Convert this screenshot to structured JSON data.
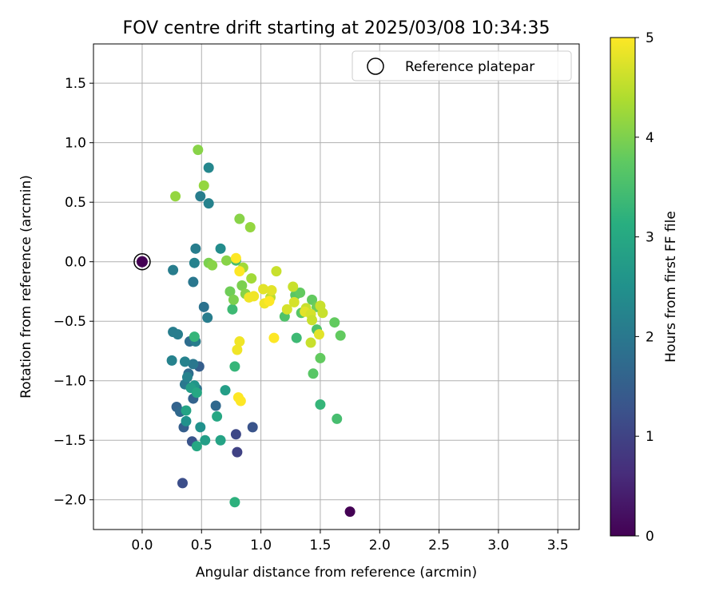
{
  "chart_data": {
    "type": "scatter",
    "title": "FOV centre drift starting at 2025/03/08 10:34:35",
    "xlabel": "Angular distance from reference (arcmin)",
    "ylabel": "Rotation from reference (arcmin)",
    "xlim": [
      -0.41,
      3.68
    ],
    "ylim": [
      -2.25,
      1.83
    ],
    "xticks": [
      "0.0",
      "0.5",
      "1.0",
      "1.5",
      "2.0",
      "2.5",
      "3.0",
      "3.5"
    ],
    "xtick_values": [
      0,
      0.5,
      1.0,
      1.5,
      2.0,
      2.5,
      3.0,
      3.5
    ],
    "yticks": [
      "1.5",
      "1.0",
      "0.5",
      "0.0",
      "−0.5",
      "−1.0",
      "−1.5",
      "−2.0"
    ],
    "ytick_values": [
      1.5,
      1.0,
      0.5,
      0.0,
      -0.5,
      -1.0,
      -1.5,
      -2.0
    ],
    "grid": true,
    "legend": {
      "position": "upper-right",
      "entries": [
        {
          "label": "Reference platepar",
          "marker": "open-circle"
        }
      ]
    },
    "reference": {
      "x": 0.0,
      "y": 0.0,
      "c": 0.0
    },
    "colorbar": {
      "label": "Hours from first FF file",
      "range": [
        0,
        5
      ],
      "ticks": [
        "0",
        "1",
        "2",
        "3",
        "4",
        "5"
      ],
      "tick_values": [
        0,
        1,
        2,
        3,
        4,
        5
      ],
      "colormap": "viridis"
    },
    "points": [
      {
        "x": 1.75,
        "y": -2.1,
        "c": 0.0
      },
      {
        "x": 0.34,
        "y": -1.86,
        "c": 1.2
      },
      {
        "x": 0.8,
        "y": -1.6,
        "c": 1.0
      },
      {
        "x": 0.42,
        "y": -1.51,
        "c": 1.3
      },
      {
        "x": 0.79,
        "y": -1.45,
        "c": 1.1
      },
      {
        "x": 0.93,
        "y": -1.39,
        "c": 1.3
      },
      {
        "x": 0.35,
        "y": -1.39,
        "c": 1.5
      },
      {
        "x": 0.29,
        "y": -1.22,
        "c": 1.6
      },
      {
        "x": 0.32,
        "y": -1.26,
        "c": 1.7
      },
      {
        "x": 0.48,
        "y": -0.88,
        "c": 1.5
      },
      {
        "x": 0.43,
        "y": -1.15,
        "c": 1.6
      },
      {
        "x": 0.62,
        "y": -1.21,
        "c": 1.7
      },
      {
        "x": 0.39,
        "y": -0.94,
        "c": 1.8
      },
      {
        "x": 0.4,
        "y": -0.67,
        "c": 1.8
      },
      {
        "x": 0.46,
        "y": -1.07,
        "c": 1.9
      },
      {
        "x": 0.36,
        "y": -1.03,
        "c": 2.0
      },
      {
        "x": 0.43,
        "y": -0.86,
        "c": 2.0
      },
      {
        "x": 0.26,
        "y": -0.59,
        "c": 2.1
      },
      {
        "x": 0.3,
        "y": -0.61,
        "c": 2.1
      },
      {
        "x": 0.45,
        "y": -0.67,
        "c": 2.1
      },
      {
        "x": 0.25,
        "y": -0.83,
        "c": 2.2
      },
      {
        "x": 0.36,
        "y": -0.84,
        "c": 2.2
      },
      {
        "x": 0.38,
        "y": -0.97,
        "c": 2.2
      },
      {
        "x": 0.43,
        "y": -0.17,
        "c": 2.0
      },
      {
        "x": 0.26,
        "y": -0.07,
        "c": 2.1
      },
      {
        "x": 0.44,
        "y": -0.01,
        "c": 2.2
      },
      {
        "x": 0.45,
        "y": 0.11,
        "c": 2.1
      },
      {
        "x": 0.52,
        "y": -0.38,
        "c": 1.9
      },
      {
        "x": 0.55,
        "y": -0.47,
        "c": 2.1
      },
      {
        "x": 0.49,
        "y": 0.55,
        "c": 2.1
      },
      {
        "x": 0.56,
        "y": 0.49,
        "c": 2.2
      },
      {
        "x": 0.56,
        "y": 0.79,
        "c": 2.3
      },
      {
        "x": 0.66,
        "y": 0.11,
        "c": 2.4
      },
      {
        "x": 0.37,
        "y": -1.34,
        "c": 2.5
      },
      {
        "x": 0.49,
        "y": -1.39,
        "c": 2.5
      },
      {
        "x": 0.53,
        "y": -1.5,
        "c": 2.8
      },
      {
        "x": 0.46,
        "y": -1.55,
        "c": 3.0
      },
      {
        "x": 0.66,
        "y": -1.5,
        "c": 2.9
      },
      {
        "x": 0.44,
        "y": -1.04,
        "c": 2.6
      },
      {
        "x": 0.41,
        "y": -1.06,
        "c": 2.8
      },
      {
        "x": 0.46,
        "y": -1.1,
        "c": 3.0
      },
      {
        "x": 0.37,
        "y": -1.25,
        "c": 2.9
      },
      {
        "x": 0.63,
        "y": -1.3,
        "c": 3.0
      },
      {
        "x": 0.7,
        "y": -1.08,
        "c": 2.8
      },
      {
        "x": 0.78,
        "y": -2.02,
        "c": 3.2
      },
      {
        "x": 0.44,
        "y": -0.63,
        "c": 3.3
      },
      {
        "x": 0.78,
        "y": -0.88,
        "c": 3.3
      },
      {
        "x": 0.76,
        "y": -0.4,
        "c": 3.4
      },
      {
        "x": 0.79,
        "y": 0.01,
        "c": 3.5
      },
      {
        "x": 1.3,
        "y": -0.64,
        "c": 3.4
      },
      {
        "x": 1.5,
        "y": -1.2,
        "c": 3.3
      },
      {
        "x": 1.64,
        "y": -1.32,
        "c": 3.5
      },
      {
        "x": 1.2,
        "y": -0.46,
        "c": 3.6
      },
      {
        "x": 1.47,
        "y": -0.57,
        "c": 3.6
      },
      {
        "x": 1.44,
        "y": -0.94,
        "c": 3.7
      },
      {
        "x": 1.5,
        "y": -0.81,
        "c": 3.8
      },
      {
        "x": 1.62,
        "y": -0.51,
        "c": 3.8
      },
      {
        "x": 1.67,
        "y": -0.62,
        "c": 3.8
      },
      {
        "x": 1.29,
        "y": -0.28,
        "c": 3.7
      },
      {
        "x": 1.33,
        "y": -0.26,
        "c": 3.8
      },
      {
        "x": 1.34,
        "y": -0.43,
        "c": 3.7
      },
      {
        "x": 1.43,
        "y": -0.32,
        "c": 3.8
      },
      {
        "x": 1.47,
        "y": -0.38,
        "c": 3.9
      },
      {
        "x": 0.74,
        "y": -0.25,
        "c": 3.9
      },
      {
        "x": 0.77,
        "y": -0.32,
        "c": 4.0
      },
      {
        "x": 0.84,
        "y": -0.2,
        "c": 4.0
      },
      {
        "x": 0.87,
        "y": -0.27,
        "c": 4.1
      },
      {
        "x": 0.71,
        "y": 0.01,
        "c": 4.1
      },
      {
        "x": 0.56,
        "y": -0.01,
        "c": 4.0
      },
      {
        "x": 0.59,
        "y": -0.03,
        "c": 4.1
      },
      {
        "x": 0.82,
        "y": 0.36,
        "c": 4.1
      },
      {
        "x": 0.91,
        "y": 0.29,
        "c": 4.2
      },
      {
        "x": 0.47,
        "y": 0.94,
        "c": 4.1
      },
      {
        "x": 0.52,
        "y": 0.64,
        "c": 4.2
      },
      {
        "x": 0.28,
        "y": 0.55,
        "c": 4.2
      },
      {
        "x": 0.85,
        "y": -0.05,
        "c": 4.3
      },
      {
        "x": 0.92,
        "y": -0.14,
        "c": 4.3
      },
      {
        "x": 1.08,
        "y": -0.3,
        "c": 4.5
      },
      {
        "x": 1.13,
        "y": -0.08,
        "c": 4.6
      },
      {
        "x": 1.27,
        "y": -0.21,
        "c": 4.6
      },
      {
        "x": 1.28,
        "y": -0.34,
        "c": 4.7
      },
      {
        "x": 1.22,
        "y": -0.4,
        "c": 4.7
      },
      {
        "x": 1.38,
        "y": -0.39,
        "c": 4.6
      },
      {
        "x": 1.37,
        "y": -0.42,
        "c": 4.8
      },
      {
        "x": 1.42,
        "y": -0.44,
        "c": 4.7
      },
      {
        "x": 1.43,
        "y": -0.49,
        "c": 4.6
      },
      {
        "x": 1.52,
        "y": -0.43,
        "c": 4.6
      },
      {
        "x": 1.49,
        "y": -0.61,
        "c": 4.8
      },
      {
        "x": 1.42,
        "y": -0.68,
        "c": 4.6
      },
      {
        "x": 1.5,
        "y": -0.37,
        "c": 4.6
      },
      {
        "x": 1.02,
        "y": -0.23,
        "c": 4.8
      },
      {
        "x": 1.09,
        "y": -0.24,
        "c": 4.8
      },
      {
        "x": 0.94,
        "y": -0.29,
        "c": 4.9
      },
      {
        "x": 0.9,
        "y": -0.3,
        "c": 4.9
      },
      {
        "x": 1.03,
        "y": -0.35,
        "c": 4.9
      },
      {
        "x": 1.07,
        "y": -0.33,
        "c": 5.0
      },
      {
        "x": 0.8,
        "y": -0.74,
        "c": 4.9
      },
      {
        "x": 0.82,
        "y": -0.67,
        "c": 4.9
      },
      {
        "x": 0.81,
        "y": -1.14,
        "c": 5.0
      },
      {
        "x": 0.83,
        "y": -1.17,
        "c": 5.0
      },
      {
        "x": 1.11,
        "y": -0.64,
        "c": 5.0
      },
      {
        "x": 0.79,
        "y": 0.03,
        "c": 5.0
      },
      {
        "x": 0.82,
        "y": -0.08,
        "c": 5.0
      }
    ]
  }
}
